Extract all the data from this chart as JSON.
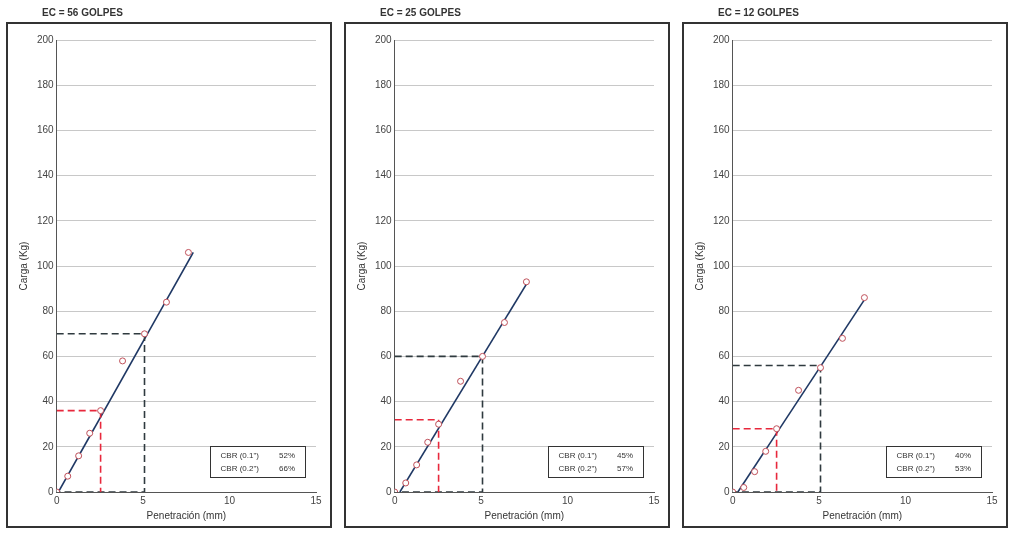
{
  "chart_data": [
    {
      "type": "scatter",
      "title": "EC = 56 GOLPES",
      "xlabel": "Penetración (mm)",
      "ylabel": "Carga (Kg)",
      "xlim": [
        0,
        15
      ],
      "xticks": [
        0,
        5,
        10,
        15
      ],
      "ylim": [
        0,
        200
      ],
      "yticks": [
        0,
        20,
        40,
        60,
        80,
        100,
        120,
        140,
        160,
        180,
        200
      ],
      "grid": "y",
      "legend": false,
      "annotations": [
        "CBR (0.1\")",
        "52%",
        "CBR (0.2\")",
        "66%"
      ],
      "series": [
        {
          "type": "line",
          "color": "#e8283c",
          "line_style": "dashed",
          "marker": "none",
          "x": [
            0,
            2.54,
            2.54
          ],
          "values": [
            36,
            36,
            0
          ]
        },
        {
          "type": "line",
          "color": "#2f3a3f",
          "line_style": "dashed",
          "marker": "none",
          "x": [
            0,
            5.08,
            5.08,
            0
          ],
          "values": [
            70,
            70,
            0,
            0
          ]
        },
        {
          "type": "line",
          "color": "#1f3864",
          "line_style": "solid",
          "marker": "none",
          "x": [
            0.1,
            7.9
          ],
          "values": [
            0,
            106
          ]
        },
        {
          "type": "scatter",
          "color": "#c0505a",
          "marker": "circle",
          "x": [
            0,
            0.64,
            1.27,
            1.91,
            2.54,
            3.81,
            5.08,
            6.35,
            7.62
          ],
          "values": [
            0,
            7,
            16,
            26,
            36,
            58,
            70,
            84,
            106
          ]
        }
      ]
    },
    {
      "type": "scatter",
      "title": "EC = 25 GOLPES",
      "xlabel": "Penetración (mm)",
      "ylabel": "Carga (Kg)",
      "xlim": [
        0,
        15
      ],
      "xticks": [
        0,
        5,
        10,
        15
      ],
      "ylim": [
        0,
        200
      ],
      "yticks": [
        0,
        20,
        40,
        60,
        80,
        100,
        120,
        140,
        160,
        180,
        200
      ],
      "grid": "y",
      "legend": false,
      "annotations": [
        "CBR (0.1\")",
        "45%",
        "CBR (0.2\")",
        "57%"
      ],
      "series": [
        {
          "type": "line",
          "color": "#e8283c",
          "line_style": "dashed",
          "marker": "none",
          "x": [
            0,
            2.54,
            2.54
          ],
          "values": [
            32,
            32,
            0
          ]
        },
        {
          "type": "line",
          "color": "#2f3a3f",
          "line_style": "dashed",
          "marker": "none",
          "x": [
            0,
            5.08,
            5.08,
            0
          ],
          "values": [
            60,
            60,
            0,
            0
          ]
        },
        {
          "type": "line",
          "color": "#1f3864",
          "line_style": "solid",
          "marker": "none",
          "x": [
            0.3,
            7.7
          ],
          "values": [
            0,
            93
          ]
        },
        {
          "type": "scatter",
          "color": "#c0505a",
          "marker": "circle",
          "x": [
            0,
            0.64,
            1.27,
            1.91,
            2.54,
            3.81,
            5.08,
            6.35,
            7.62
          ],
          "values": [
            0,
            4,
            12,
            22,
            30,
            49,
            60,
            75,
            93
          ]
        }
      ]
    },
    {
      "type": "scatter",
      "title": "EC = 12 GOLPES",
      "xlabel": "Penetración (mm)",
      "ylabel": "Carga (Kg)",
      "xlim": [
        0,
        15
      ],
      "xticks": [
        0,
        5,
        10,
        15
      ],
      "ylim": [
        0,
        200
      ],
      "yticks": [
        0,
        20,
        40,
        60,
        80,
        100,
        120,
        140,
        160,
        180,
        200
      ],
      "grid": "y",
      "legend": false,
      "annotations": [
        "CBR (0.1\")",
        "40%",
        "CBR (0.2\")",
        "53%"
      ],
      "series": [
        {
          "type": "line",
          "color": "#e8283c",
          "line_style": "dashed",
          "marker": "none",
          "x": [
            0,
            2.54,
            2.54
          ],
          "values": [
            28,
            28,
            0
          ]
        },
        {
          "type": "line",
          "color": "#2f3a3f",
          "line_style": "dashed",
          "marker": "none",
          "x": [
            0,
            5.08,
            5.08,
            0
          ],
          "values": [
            56,
            56,
            0,
            0
          ]
        },
        {
          "type": "line",
          "color": "#1f3864",
          "line_style": "solid",
          "marker": "none",
          "x": [
            0.3,
            7.7
          ],
          "values": [
            0,
            86
          ]
        },
        {
          "type": "scatter",
          "color": "#c0505a",
          "marker": "circle",
          "x": [
            0,
            0.64,
            1.27,
            1.91,
            2.54,
            3.81,
            5.08,
            6.35,
            7.62
          ],
          "values": [
            0,
            2,
            9,
            18,
            28,
            45,
            55,
            68,
            86
          ]
        }
      ]
    }
  ]
}
